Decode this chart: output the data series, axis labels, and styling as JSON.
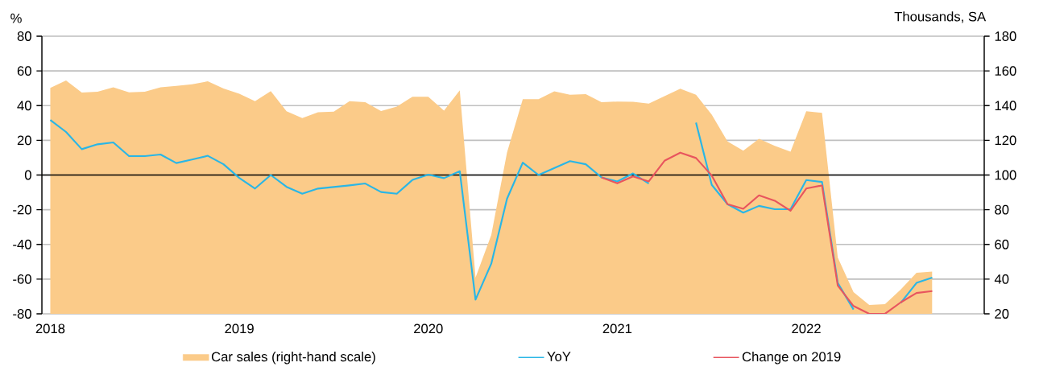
{
  "chart_data": {
    "type": "line",
    "ylabel": "%",
    "y2label": "Thousands, SA",
    "x": [
      "2018-01",
      "2018-02",
      "2018-03",
      "2018-04",
      "2018-05",
      "2018-06",
      "2018-07",
      "2018-08",
      "2018-09",
      "2018-10",
      "2018-11",
      "2018-12",
      "2019-01",
      "2019-02",
      "2019-03",
      "2019-04",
      "2019-05",
      "2019-06",
      "2019-07",
      "2019-08",
      "2019-09",
      "2019-10",
      "2019-11",
      "2019-12",
      "2020-01",
      "2020-02",
      "2020-03",
      "2020-04",
      "2020-05",
      "2020-06",
      "2020-07",
      "2020-08",
      "2020-09",
      "2020-10",
      "2020-11",
      "2020-12",
      "2021-01",
      "2021-02",
      "2021-03",
      "2021-04",
      "2021-05",
      "2021-06",
      "2021-07",
      "2021-08",
      "2021-09",
      "2021-10",
      "2021-11",
      "2021-12",
      "2022-01",
      "2022-02",
      "2022-03",
      "2022-04",
      "2022-05",
      "2022-06",
      "2022-07",
      "2022-08",
      "2022-09"
    ],
    "series": [
      {
        "name": "Car sales (right-hand scale)",
        "type": "area",
        "axis": "y2",
        "color": "#fbcb89",
        "values": [
          150.2,
          154.5,
          147.5,
          148,
          150.6,
          147.7,
          148,
          150.5,
          151.4,
          152.3,
          154,
          149.8,
          146.8,
          142.6,
          148.3,
          136.8,
          132.8,
          136.2,
          136.5,
          142.5,
          142,
          136.9,
          139.4,
          145.1,
          145.1,
          137.1,
          148.8,
          40.9,
          65.5,
          113,
          143.7,
          143.7,
          148.2,
          146.2,
          146.6,
          142,
          142.3,
          142.2,
          141.1,
          145.5,
          149.7,
          146.3,
          134.8,
          119.4,
          114,
          120.9,
          116.8,
          113.5,
          136.8,
          135.8,
          52.5,
          32.5,
          25.1,
          25.5,
          34,
          43.7,
          44.3
        ]
      },
      {
        "name": "YoY",
        "color": "#29b6e6",
        "values": [
          31.7,
          24.8,
          14.9,
          17.7,
          18.8,
          10.9,
          10.9,
          11.8,
          6.9,
          8.9,
          11.1,
          6.2,
          -1.7,
          -7.8,
          0,
          -6.8,
          -10.8,
          -7.8,
          -6.9,
          -6,
          -4.9,
          -9.8,
          -10.8,
          -2.8,
          0.2,
          -1.8,
          2.2,
          -71.8,
          -51.1,
          -13.7,
          7.1,
          0,
          4,
          8,
          6.2,
          -1.4,
          -3.7,
          0.9,
          -4.9,
          null,
          null,
          30.2,
          -5.7,
          -16.8,
          -21.7,
          -17.8,
          -19.7,
          -19.7,
          -2.9,
          -4,
          -62.2,
          -77.5,
          null,
          null,
          -73.7,
          -62.2,
          -59.1
        ]
      },
      {
        "name": "Change on 2019",
        "color": "#e8555e",
        "values": [
          null,
          null,
          null,
          null,
          null,
          null,
          null,
          null,
          null,
          null,
          null,
          null,
          null,
          null,
          null,
          null,
          null,
          null,
          null,
          null,
          null,
          null,
          null,
          null,
          null,
          null,
          null,
          null,
          null,
          null,
          null,
          null,
          null,
          null,
          null,
          -1.4,
          -4.8,
          -0.8,
          -3.7,
          8.2,
          12.9,
          9.8,
          -0.3,
          -16.8,
          -19.5,
          -11.7,
          -14.8,
          -20.6,
          -7.8,
          -6,
          -63.7,
          -75.5,
          -80,
          -80,
          -73.4,
          -68,
          -66.9
        ]
      }
    ],
    "xlim": [
      "2017-12-15",
      "2022-12-10"
    ],
    "xticks": [
      "2018",
      "2019",
      "2020",
      "2021",
      "2022"
    ],
    "ylim": [
      -80,
      80
    ],
    "yticks": [
      -80,
      -60,
      -40,
      -20,
      0,
      20,
      40,
      60,
      80
    ],
    "y2lim": [
      20,
      180
    ],
    "y2ticks": [
      20,
      40,
      60,
      80,
      100,
      120,
      140,
      160,
      180
    ],
    "grid": "y",
    "legend": "bottom"
  }
}
